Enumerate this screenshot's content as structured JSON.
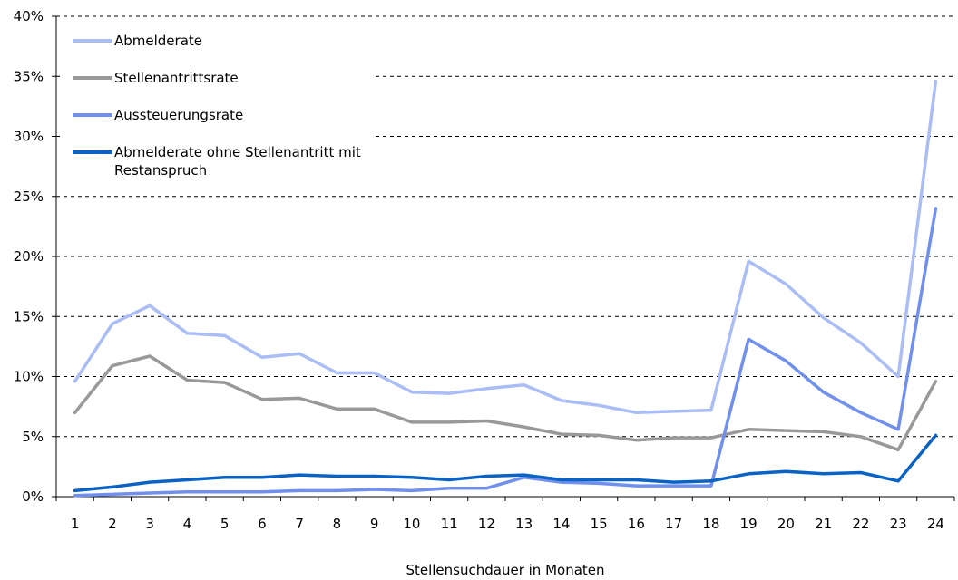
{
  "chart_data": {
    "type": "line",
    "title": "",
    "xlabel": "Stellensuchdauer in Monaten",
    "ylabel": "",
    "ylim": [
      0,
      40
    ],
    "yticks": [
      "0%",
      "5%",
      "10%",
      "15%",
      "20%",
      "25%",
      "30%",
      "35%",
      "40%"
    ],
    "categories": [
      "1",
      "2",
      "3",
      "4",
      "5",
      "6",
      "7",
      "8",
      "9",
      "10",
      "11",
      "12",
      "13",
      "14",
      "15",
      "16",
      "17",
      "18",
      "19",
      "20",
      "21",
      "22",
      "23",
      "24"
    ],
    "grid": "horizontal dashed",
    "legend_position": "top-left",
    "series": [
      {
        "name": "Abmelderate",
        "color": "#aabdf5",
        "values": [
          9.6,
          14.4,
          15.9,
          13.6,
          13.4,
          11.6,
          11.9,
          10.3,
          10.3,
          8.7,
          8.6,
          9.0,
          9.3,
          8.0,
          7.6,
          7.0,
          7.1,
          7.2,
          19.6,
          17.7,
          14.9,
          12.8,
          10.0,
          34.6
        ]
      },
      {
        "name": "Stellenantrittsrate",
        "color": "#999999",
        "values": [
          7.0,
          10.9,
          11.7,
          9.7,
          9.5,
          8.1,
          8.2,
          7.3,
          7.3,
          6.2,
          6.2,
          6.3,
          5.8,
          5.2,
          5.1,
          4.7,
          4.9,
          4.9,
          5.6,
          5.5,
          5.4,
          5.0,
          3.9,
          9.6
        ]
      },
      {
        "name": "Aussteuerungsrate",
        "color": "#7190ee",
        "values": [
          0.1,
          0.2,
          0.3,
          0.4,
          0.4,
          0.4,
          0.5,
          0.5,
          0.6,
          0.5,
          0.7,
          0.7,
          1.6,
          1.2,
          1.1,
          0.9,
          0.9,
          0.9,
          13.1,
          11.3,
          8.7,
          7.0,
          5.6,
          24.0
        ]
      },
      {
        "name": "Abmelderate ohne Stellenantritt mit Restanspruch",
        "color": "#0a63c4",
        "values": [
          0.5,
          0.8,
          1.2,
          1.4,
          1.6,
          1.6,
          1.8,
          1.7,
          1.7,
          1.6,
          1.4,
          1.7,
          1.8,
          1.4,
          1.4,
          1.4,
          1.2,
          1.3,
          1.9,
          2.1,
          1.9,
          2.0,
          1.3,
          5.1
        ]
      }
    ]
  }
}
